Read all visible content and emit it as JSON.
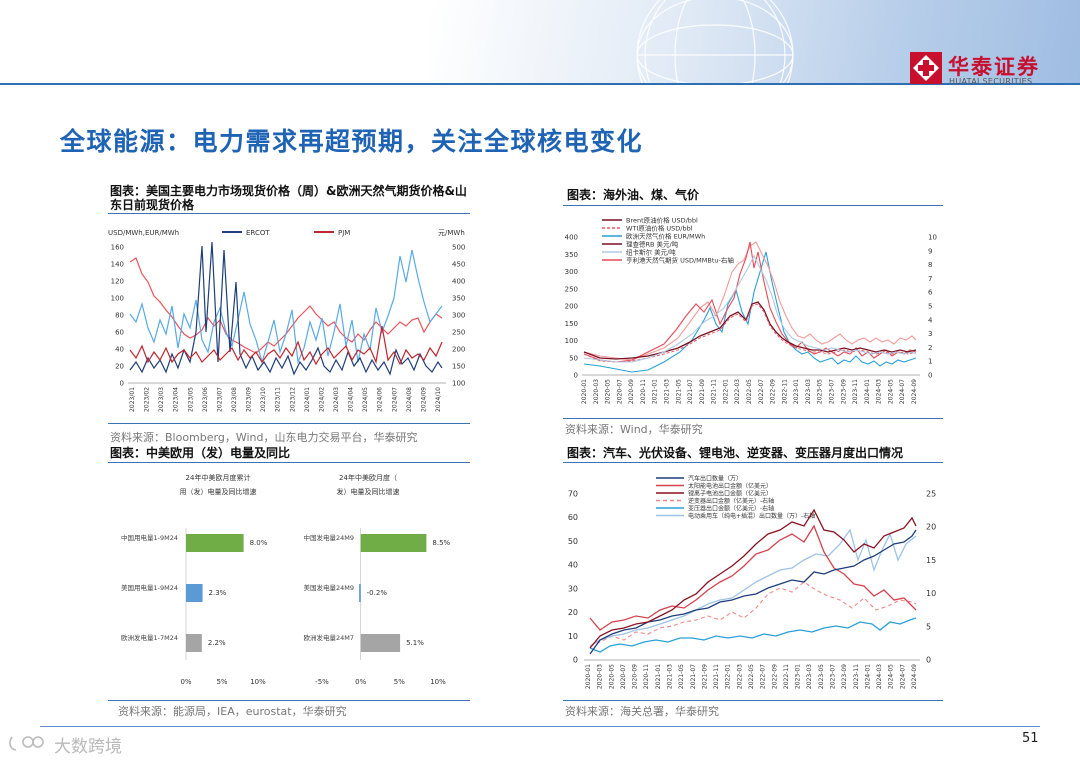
{
  "header": {
    "logo_cn": "华泰证券",
    "logo_en": "HUATAI SECURITIES"
  },
  "page_title": "全球能源：电力需求再超预期，关注全球核电变化",
  "panel1": {
    "title": "图表：美国主要电力市场现货价格（周）&欧洲天然气期货价格&山东日前现货价格",
    "source": "资料来源：Bloomberg，Wind，山东电力交易平台，华泰研究",
    "left_unit": "USD/MWh,EUR/MWh",
    "right_unit": "元/MWh",
    "legend": [
      "ERCOT",
      "PJM"
    ],
    "left_ticks": [
      "160",
      "140",
      "120",
      "100",
      "80",
      "60",
      "40",
      "20",
      "0"
    ],
    "right_ticks": [
      "500",
      "450",
      "400",
      "350",
      "300",
      "250",
      "200",
      "150",
      "100"
    ],
    "x_ticks": [
      "2023/01",
      "2023/02",
      "2023/03",
      "2023/04",
      "2023/05",
      "2023/06",
      "2023/07",
      "2023/08",
      "2023/09",
      "2023/10",
      "2023/11",
      "2023/12",
      "2024/01",
      "2024/02",
      "2024/03",
      "2024/04",
      "2024/05",
      "2024/06",
      "2024/07",
      "2024/08",
      "2024/09",
      "2024/10"
    ]
  },
  "panel2": {
    "title": "图表：海外油、煤、气价",
    "source": "资料来源：Wind，华泰研究",
    "legend": [
      "Brent原油价格 USD/bbl",
      "WTI原油价格 USD/bbl",
      "欧洲天然气价格 EUR/MWh",
      "理查德RB 美元/吨",
      "纽卡斯尔 美元/吨",
      "亨利港天然气期货 USD/MMBtu-右轴"
    ],
    "left_ticks": [
      "400",
      "350",
      "300",
      "250",
      "200",
      "150",
      "100",
      "50",
      "0"
    ],
    "right_ticks": [
      "10",
      "9",
      "8",
      "7",
      "6",
      "5",
      "4",
      "3",
      "2",
      "1",
      "0"
    ],
    "x_ticks": [
      "2020-01",
      "2020-03",
      "2020-05",
      "2020-07",
      "2020-09",
      "2020-11",
      "2021-01",
      "2021-03",
      "2021-05",
      "2021-07",
      "2021-09",
      "2021-11",
      "2022-01",
      "2022-03",
      "2022-05",
      "2022-07",
      "2022-09",
      "2022-11",
      "2023-01",
      "2023-03",
      "2023-05",
      "2023-07",
      "2023-09",
      "2023-11",
      "2024-01",
      "2024-03",
      "2024-05",
      "2024-07",
      "2024-09"
    ]
  },
  "panel3": {
    "title": "图表：中美欧用（发）电量及同比",
    "source": "资料来源：能源局，IEA，eurostat，华泰研究",
    "chart_data": [
      {
        "type": "bar",
        "title": "24年中美欧月度累计用（发）电量及同比增速",
        "categories": [
          "中国用电量1-9M24",
          "美国用电量1-9M24",
          "欧洲发电量1-7M24"
        ],
        "values": [
          8.0,
          2.3,
          2.2
        ],
        "value_labels": [
          "8.0%",
          "2.3%",
          "2.2%"
        ],
        "colors": [
          "#70ad47",
          "#5b9bd5",
          "#a5a5a5"
        ],
        "x_ticks": [
          "0%",
          "5%",
          "10%"
        ],
        "xlim": [
          0,
          10
        ]
      },
      {
        "type": "bar",
        "title": "24年中美欧月度（发）电量及同比增速",
        "categories": [
          "中国发电量24M9",
          "美国发电量24M9",
          "欧洲发电量24M7"
        ],
        "values": [
          8.5,
          -0.2,
          5.1
        ],
        "value_labels": [
          "8.5%",
          "-0.2%",
          "5.1%"
        ],
        "colors": [
          "#70ad47",
          "#5b9bd5",
          "#a5a5a5"
        ],
        "x_ticks": [
          "-5%",
          "0%",
          "5%",
          "10%"
        ],
        "xlim": [
          -5,
          10
        ]
      }
    ]
  },
  "panel4": {
    "title": "图表：汽车、光伏设备、锂电池、逆变器、变压器月度出口情况",
    "source": "资料来源：海关总署，华泰研究",
    "legend": [
      "汽车出口数量（万）",
      "太阳能电池出口金额（亿美元）",
      "锂离子电池出口金额（亿美元）",
      "逆变器出口金额（亿美元）-右轴",
      "变压器出口金额（亿美元）-右轴",
      "电动乘用车（纯电+插混）出口数量（万）-右轴"
    ],
    "left_ticks": [
      "70",
      "60",
      "50",
      "40",
      "30",
      "20",
      "10",
      "0"
    ],
    "right_ticks": [
      "25",
      "20",
      "15",
      "10",
      "5",
      "0"
    ],
    "x_ticks": [
      "2020-01",
      "2020-03",
      "2020-05",
      "2020-07",
      "2020-09",
      "2020-11",
      "2021-01",
      "2021-03",
      "2021-05",
      "2021-07",
      "2021-09",
      "2021-11",
      "2022-01",
      "2022-03",
      "2022-05",
      "2022-07",
      "2022-09",
      "2022-11",
      "2023-01",
      "2023-03",
      "2023-05",
      "2023-07",
      "2023-09",
      "2023-11",
      "2024-01",
      "2024-03",
      "2024-05",
      "2024-07",
      "2024-09"
    ]
  },
  "footer": {
    "page_number": "51",
    "watermark": "大数跨境"
  }
}
